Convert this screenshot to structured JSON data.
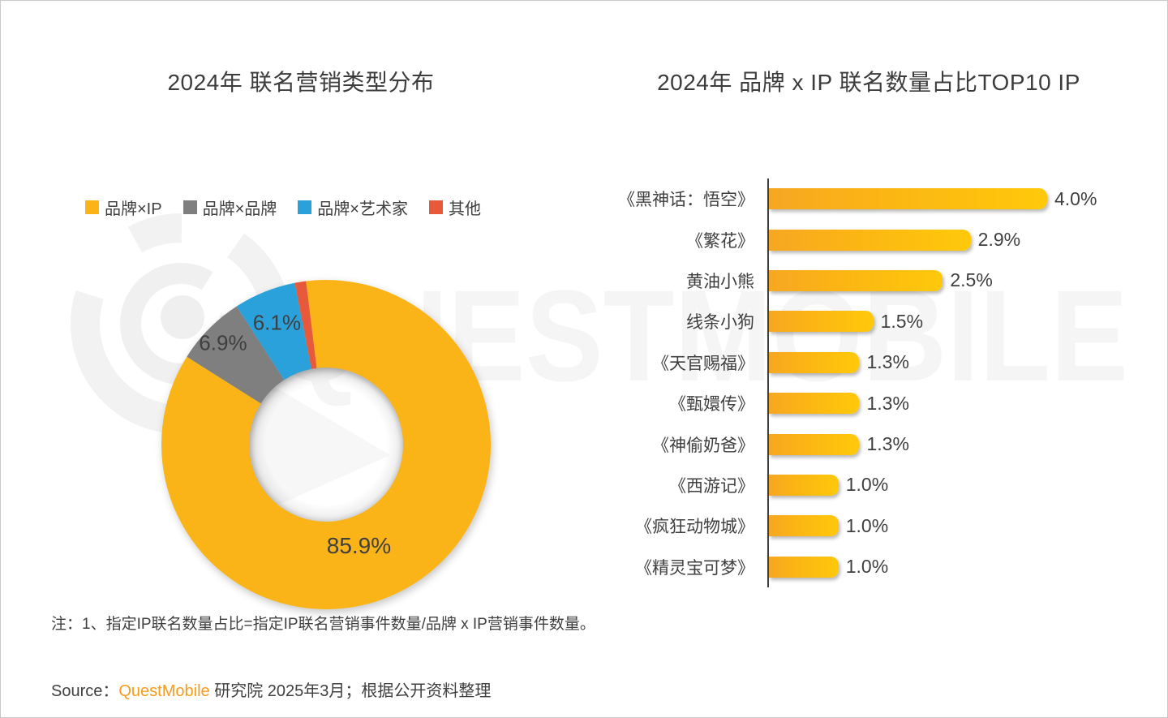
{
  "page": {
    "watermark_text": "QUESTMOBILE",
    "note": "注：1、指定IP联名数量占比=指定IP联名营销事件数量/品牌 x IP营销事件数量。",
    "source_prefix": "Source：",
    "source_brand": "QuestMobile",
    "source_suffix": " 研究院 2025年3月；根据公开资料整理"
  },
  "colors": {
    "brand_yellow": "#fbb417",
    "gray": "#7f7f7f",
    "blue": "#2ba1db",
    "red": "#e8593c",
    "bar_gradient_start": "#f6a722",
    "bar_gradient_end": "#ffc90a",
    "axis": "#3f3f3f",
    "text_dark": "#3f3f3f",
    "source_orange": "#f89b1c",
    "watermark_gray": "#f5f5f5"
  },
  "chart_data": [
    {
      "type": "pie",
      "donut": true,
      "title": "2024年 联名营销类型分布",
      "legend_position": "top",
      "labels": [
        "品牌×IP",
        "品牌×品牌",
        "品牌×艺术家",
        "其他"
      ],
      "values": [
        85.9,
        6.9,
        6.1,
        1.1
      ],
      "display_labels": [
        "85.9%",
        "6.9%",
        "6.1%",
        ""
      ],
      "colors": [
        "#fbb417",
        "#7f7f7f",
        "#2ba1db",
        "#e8593c"
      ]
    },
    {
      "type": "bar",
      "orientation": "horizontal",
      "title": "2024年 品牌 x IP 联名数量占比TOP10 IP",
      "categories": [
        "《黑神话：悟空》",
        "《繁花》",
        "黄油小熊",
        "线条小狗",
        "《天官赐福》",
        "《甄嬛传》",
        "《神偷奶爸》",
        "《西游记》",
        "《疯狂动物城》",
        "《精灵宝可梦》"
      ],
      "values": [
        4.0,
        2.9,
        2.5,
        1.5,
        1.3,
        1.3,
        1.3,
        1.0,
        1.0,
        1.0
      ],
      "value_labels": [
        "4.0%",
        "2.9%",
        "2.5%",
        "1.5%",
        "1.3%",
        "1.3%",
        "1.3%",
        "1.0%",
        "1.0%",
        "1.0%"
      ],
      "xlim": [
        0,
        4.0
      ],
      "grid": false,
      "value_labels_position": "end"
    }
  ]
}
